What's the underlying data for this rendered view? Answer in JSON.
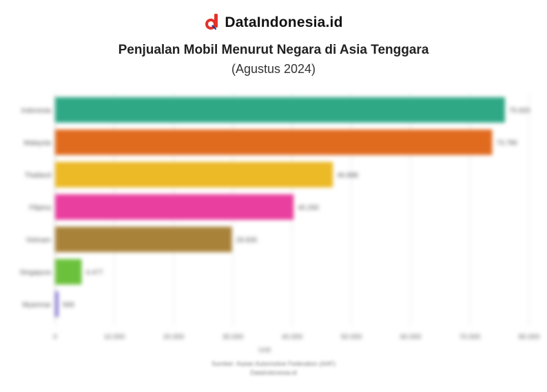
{
  "brand": {
    "name": "DataIndonesia.id",
    "logo_letter": "d"
  },
  "chart_data": {
    "type": "bar",
    "orientation": "horizontal",
    "title": "Penjualan Mobil Menurut Negara di Asia Tenggara",
    "subtitle": "(Agustus 2024)",
    "categories": [
      "Indonesia",
      "Malaysia",
      "Thailand",
      "Filipina",
      "Vietnam",
      "Singapura",
      "Myanmar"
    ],
    "values": [
      75920,
      73780,
      46888,
      40260,
      29835,
      4477,
      568
    ],
    "value_labels": [
      "75.920",
      "73.780",
      "46.888",
      "40.260",
      "29.835",
      "4.477",
      "568"
    ],
    "colors": [
      "#2fa886",
      "#e06b1f",
      "#ecb927",
      "#e93f9e",
      "#a9823a",
      "#6cc13c",
      "#8b7fd8"
    ],
    "xlim": [
      0,
      80000
    ],
    "xticks": [
      0,
      10000,
      20000,
      30000,
      40000,
      50000,
      60000,
      70000,
      80000
    ],
    "xtick_labels": [
      "0",
      "10.000",
      "20.000",
      "30.000",
      "40.000",
      "50.000",
      "60.000",
      "70.000",
      "80.000"
    ],
    "xlabel": "Unit",
    "grid": true,
    "legend": "none"
  },
  "source": {
    "line1": "Sumber: Asean Automotive Federation (AAF)",
    "line2": "DataIndonesia.id"
  }
}
